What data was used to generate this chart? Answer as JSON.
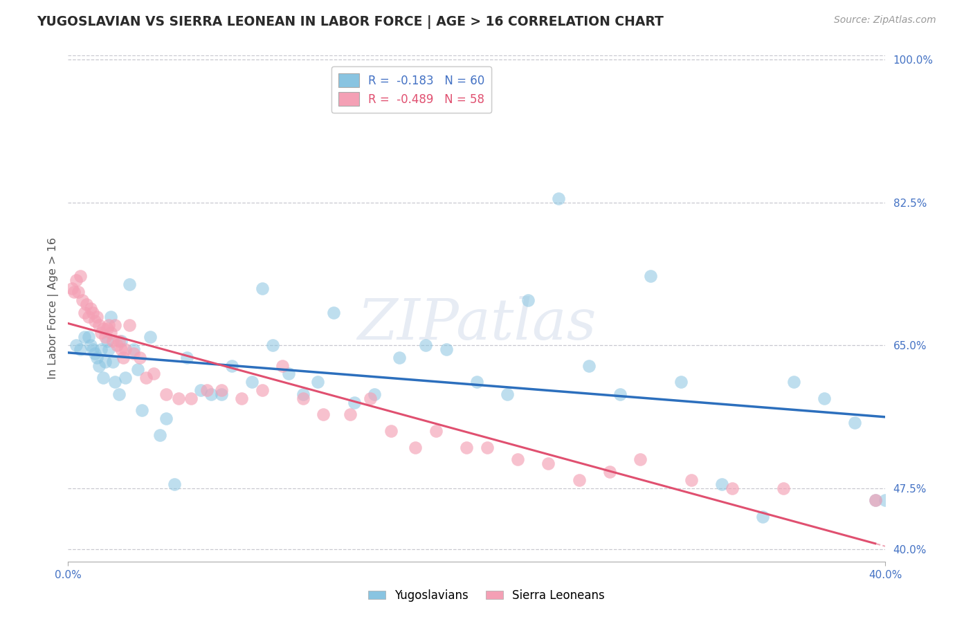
{
  "title": "YUGOSLAVIAN VS SIERRA LEONEAN IN LABOR FORCE | AGE > 16 CORRELATION CHART",
  "source_text": "Source: ZipAtlas.com",
  "ylabel": "In Labor Force | Age > 16",
  "xlim": [
    0.0,
    0.4
  ],
  "ylim": [
    0.385,
    1.005
  ],
  "ytick_positions": [
    0.4,
    0.475,
    0.65,
    0.825,
    1.0
  ],
  "ytick_labels": [
    "40.0%",
    "47.5%",
    "65.0%",
    "82.5%",
    "100.0%"
  ],
  "xtick_positions": [
    0.0,
    0.4
  ],
  "xtick_labels": [
    "0.0%",
    "40.0%"
  ],
  "legend_r1": "R =  -0.183",
  "legend_n1": "N = 60",
  "legend_r2": "R =  -0.489",
  "legend_n2": "N = 58",
  "color_yug": "#89c4e1",
  "color_sl": "#f4a0b5",
  "color_line_yug": "#2c6fbd",
  "color_line_sl": "#e05070",
  "watermark": "ZIPatlas",
  "background_color": "#ffffff",
  "grid_color": "#c8c8d0",
  "title_color": "#2a2a2a",
  "axis_color": "#4472c4",
  "yug_x": [
    0.004,
    0.006,
    0.008,
    0.01,
    0.011,
    0.012,
    0.013,
    0.014,
    0.015,
    0.016,
    0.017,
    0.018,
    0.019,
    0.02,
    0.021,
    0.022,
    0.023,
    0.025,
    0.026,
    0.028,
    0.03,
    0.032,
    0.034,
    0.036,
    0.04,
    0.045,
    0.048,
    0.052,
    0.058,
    0.065,
    0.07,
    0.075,
    0.08,
    0.09,
    0.095,
    0.1,
    0.108,
    0.115,
    0.122,
    0.13,
    0.14,
    0.15,
    0.162,
    0.175,
    0.185,
    0.2,
    0.215,
    0.225,
    0.24,
    0.255,
    0.27,
    0.285,
    0.3,
    0.32,
    0.34,
    0.355,
    0.37,
    0.385,
    0.395,
    0.4
  ],
  "yug_y": [
    0.65,
    0.645,
    0.66,
    0.66,
    0.65,
    0.645,
    0.64,
    0.635,
    0.625,
    0.645,
    0.61,
    0.63,
    0.655,
    0.645,
    0.685,
    0.63,
    0.605,
    0.59,
    0.655,
    0.61,
    0.725,
    0.645,
    0.62,
    0.57,
    0.66,
    0.54,
    0.56,
    0.48,
    0.635,
    0.595,
    0.59,
    0.59,
    0.625,
    0.605,
    0.72,
    0.65,
    0.615,
    0.59,
    0.605,
    0.69,
    0.58,
    0.59,
    0.635,
    0.65,
    0.645,
    0.605,
    0.59,
    0.705,
    0.83,
    0.625,
    0.59,
    0.735,
    0.605,
    0.48,
    0.44,
    0.605,
    0.585,
    0.555,
    0.46,
    0.46
  ],
  "sl_x": [
    0.002,
    0.003,
    0.004,
    0.005,
    0.006,
    0.007,
    0.008,
    0.009,
    0.01,
    0.011,
    0.012,
    0.013,
    0.014,
    0.015,
    0.016,
    0.017,
    0.018,
    0.019,
    0.02,
    0.021,
    0.022,
    0.023,
    0.024,
    0.025,
    0.026,
    0.027,
    0.028,
    0.03,
    0.032,
    0.035,
    0.038,
    0.042,
    0.048,
    0.054,
    0.06,
    0.068,
    0.075,
    0.085,
    0.095,
    0.105,
    0.115,
    0.125,
    0.138,
    0.148,
    0.158,
    0.17,
    0.18,
    0.195,
    0.205,
    0.22,
    0.235,
    0.25,
    0.265,
    0.28,
    0.305,
    0.325,
    0.35,
    0.395
  ],
  "sl_y": [
    0.72,
    0.715,
    0.73,
    0.715,
    0.735,
    0.705,
    0.69,
    0.7,
    0.685,
    0.695,
    0.69,
    0.68,
    0.685,
    0.675,
    0.665,
    0.67,
    0.66,
    0.67,
    0.675,
    0.665,
    0.655,
    0.675,
    0.65,
    0.655,
    0.645,
    0.635,
    0.645,
    0.675,
    0.64,
    0.635,
    0.61,
    0.615,
    0.59,
    0.585,
    0.585,
    0.595,
    0.595,
    0.585,
    0.595,
    0.625,
    0.585,
    0.565,
    0.565,
    0.585,
    0.545,
    0.525,
    0.545,
    0.525,
    0.525,
    0.51,
    0.505,
    0.485,
    0.495,
    0.51,
    0.485,
    0.475,
    0.475,
    0.46
  ]
}
